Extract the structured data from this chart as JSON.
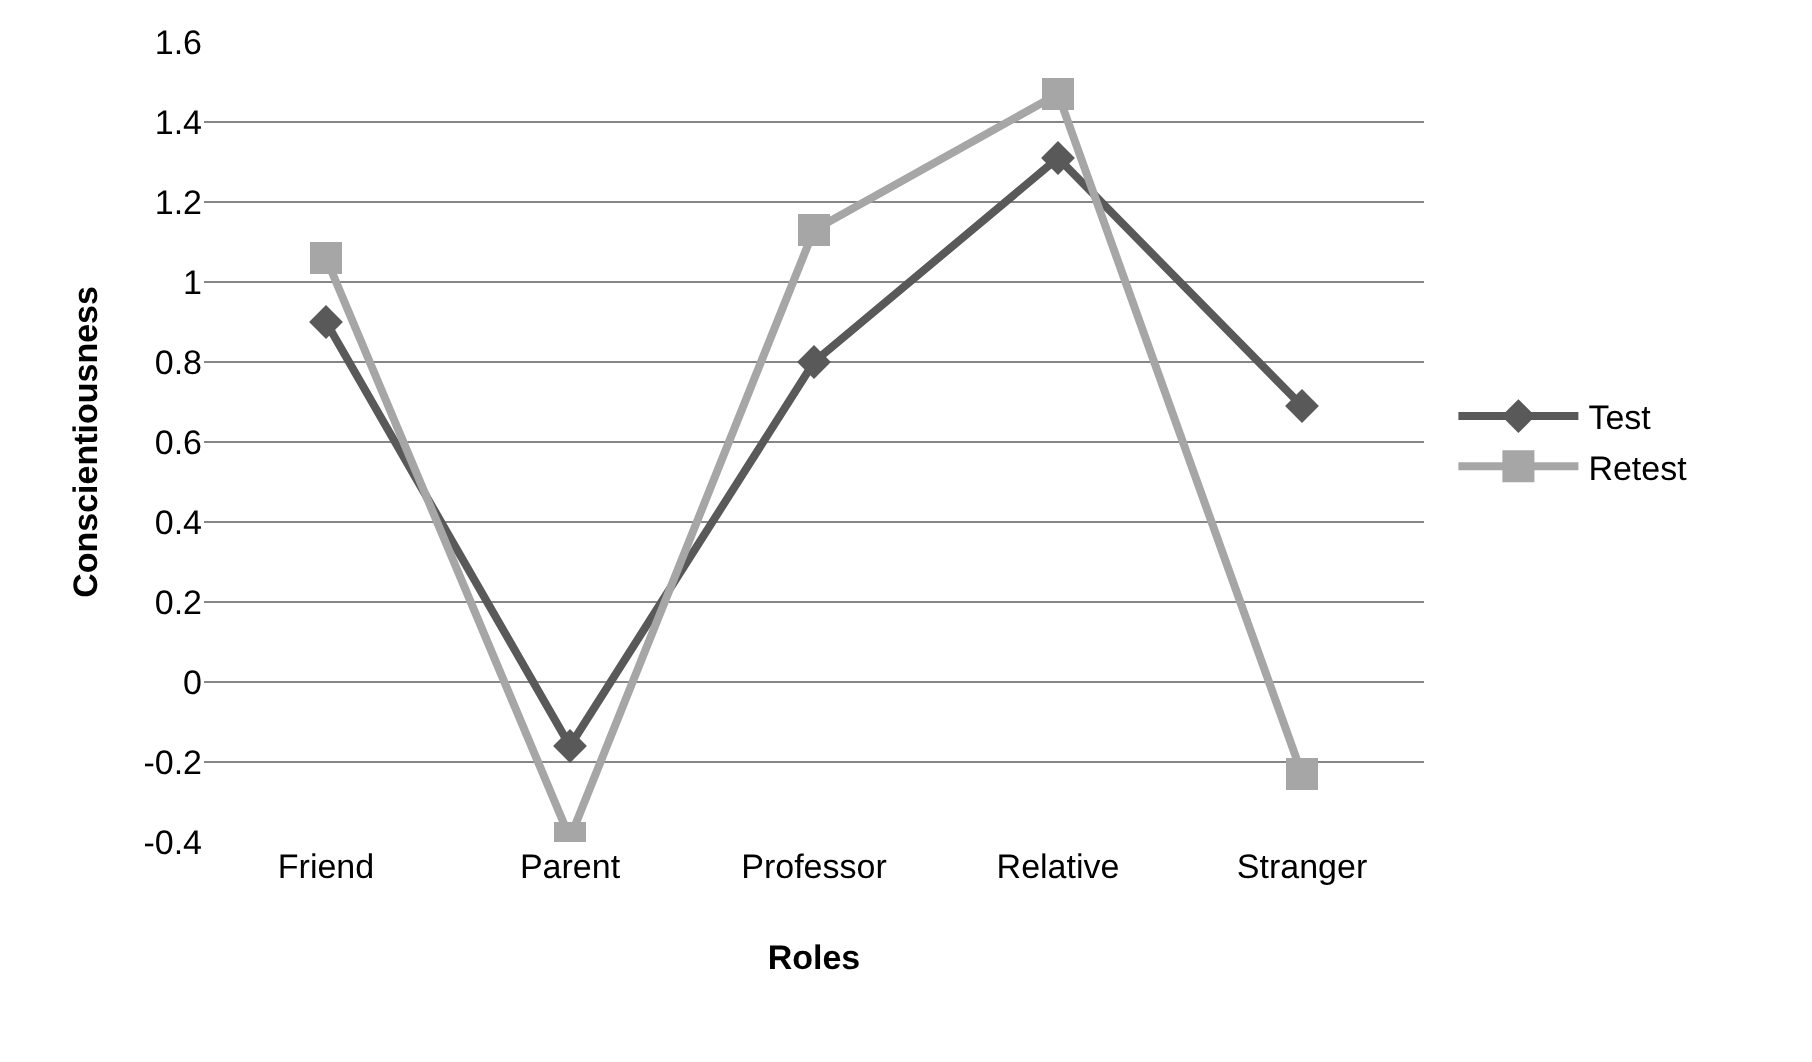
{
  "chart_data": {
    "type": "line",
    "xlabel": "Roles",
    "ylabel": "Conscientiousness",
    "categories": [
      "Friend",
      "Parent",
      "Professor",
      "Relative",
      "Stranger"
    ],
    "series": [
      {
        "name": "Test",
        "color": "#595959",
        "marker": "diamond",
        "values": [
          0.9,
          -0.16,
          0.8,
          1.31,
          0.69
        ]
      },
      {
        "name": "Retest",
        "color": "#a6a6a6",
        "marker": "square",
        "values": [
          1.06,
          -0.39,
          1.13,
          1.47,
          -0.23
        ]
      }
    ],
    "ylim": [
      -0.4,
      1.6
    ],
    "yticks": [
      -0.4,
      -0.2,
      0,
      0.2,
      0.4,
      0.6,
      0.8,
      1,
      1.2,
      1.4,
      1.6
    ],
    "grid": "y",
    "legend": "right",
    "line_style": "solid"
  }
}
